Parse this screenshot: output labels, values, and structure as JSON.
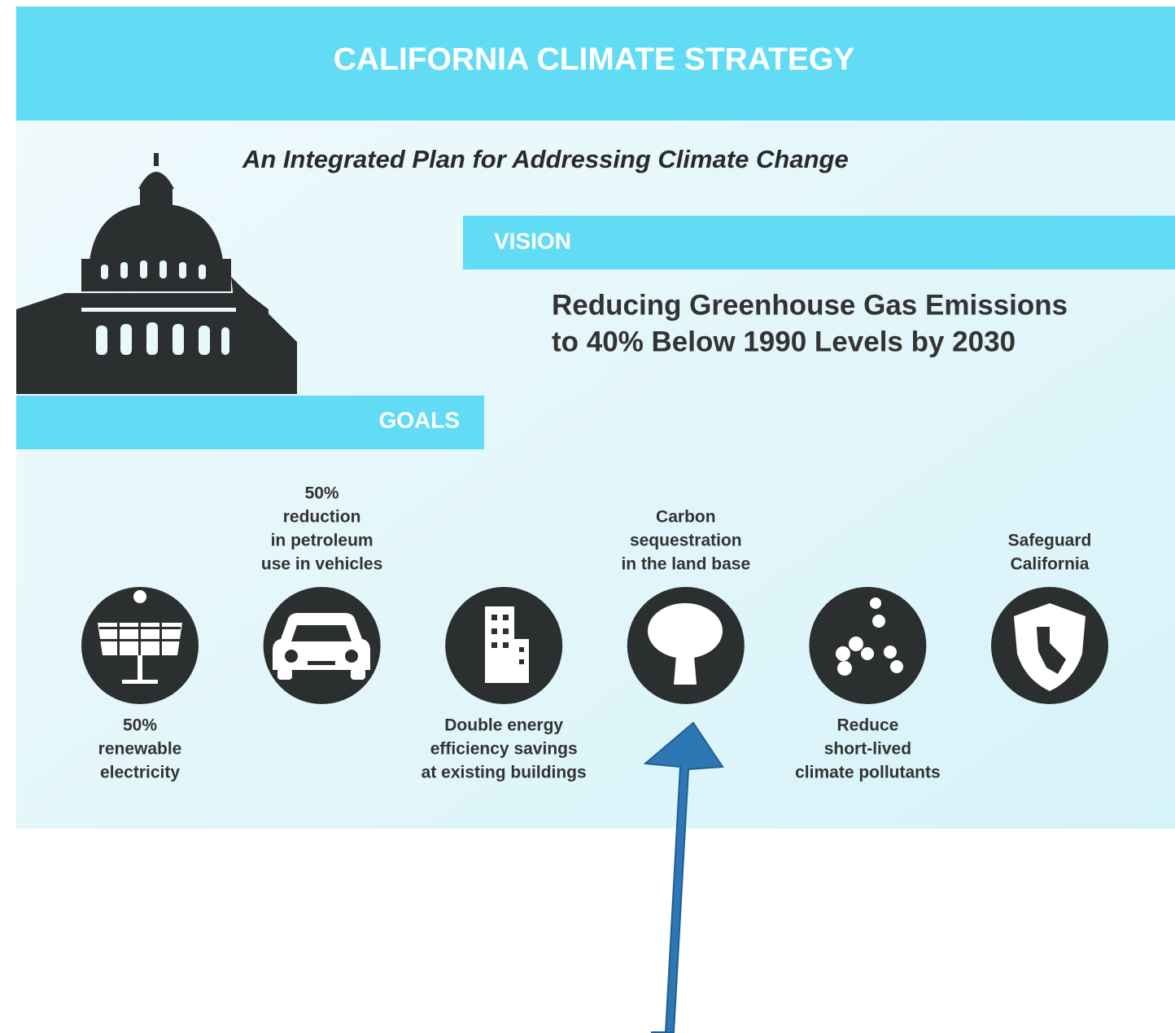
{
  "header": {
    "title": "CALIFORNIA CLIMATE STRATEGY",
    "subtitle": "An Integrated Plan for Addressing Climate Change"
  },
  "vision": {
    "label": "VISION",
    "lines": [
      "Reducing Greenhouse Gas Emissions",
      "to 40% Below 1990 Levels by 2030"
    ]
  },
  "goals": {
    "label": "GOALS",
    "items": [
      {
        "lines": [
          "50%",
          "renewable",
          "electricity"
        ]
      },
      {
        "lines": [
          "50%",
          "reduction",
          "in petroleum",
          "use in vehicles"
        ]
      },
      {
        "lines": [
          "Double energy",
          "efficiency savings",
          "at existing buildings"
        ]
      },
      {
        "lines": [
          "Carbon",
          "sequestration",
          "in the land base"
        ]
      },
      {
        "lines": [
          "Reduce",
          "short-lived",
          "climate pollutants"
        ]
      },
      {
        "lines": [
          "Safeguard",
          "California"
        ]
      }
    ]
  }
}
